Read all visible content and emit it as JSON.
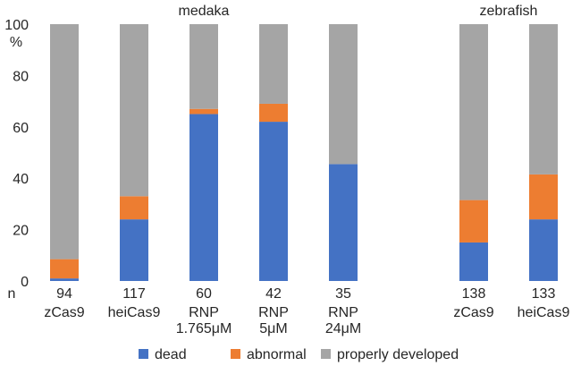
{
  "chart_data": {
    "type": "bar",
    "stacked": true,
    "groups": [
      {
        "label": "medaka",
        "category_indices": [
          0,
          1,
          2,
          3,
          4
        ]
      },
      {
        "label": "zebrafish",
        "category_indices": [
          5,
          6
        ]
      }
    ],
    "n_prefix": "n",
    "categories": [
      {
        "n": "94",
        "label": [
          "zCas9"
        ]
      },
      {
        "n": "117",
        "label": [
          "heiCas9"
        ]
      },
      {
        "n": "60",
        "label": [
          "RNP",
          "1.765μM"
        ]
      },
      {
        "n": "42",
        "label": [
          "RNP",
          "5μM"
        ]
      },
      {
        "n": "35",
        "label": [
          "RNP",
          "24μM"
        ]
      },
      {
        "n": "138",
        "label": [
          "zCas9"
        ]
      },
      {
        "n": "133",
        "label": [
          "heiCas9"
        ]
      }
    ],
    "series": [
      {
        "name": "dead",
        "color": "#4472C4",
        "values": [
          1,
          24,
          65,
          62,
          45.5,
          15,
          24
        ]
      },
      {
        "name": "abnormal",
        "color": "#ED7D31",
        "values": [
          7.5,
          9,
          2,
          7,
          0,
          16.5,
          17.5
        ]
      },
      {
        "name": "properly developed",
        "color": "#A5A5A5",
        "values": [
          91.5,
          67,
          33,
          31,
          54.5,
          68.5,
          58.5
        ]
      }
    ],
    "ylabel": "%",
    "ylim": [
      0,
      100
    ],
    "yticks": [
      0,
      20,
      40,
      60,
      80,
      100
    ],
    "grid": false,
    "legend": "bottom"
  }
}
